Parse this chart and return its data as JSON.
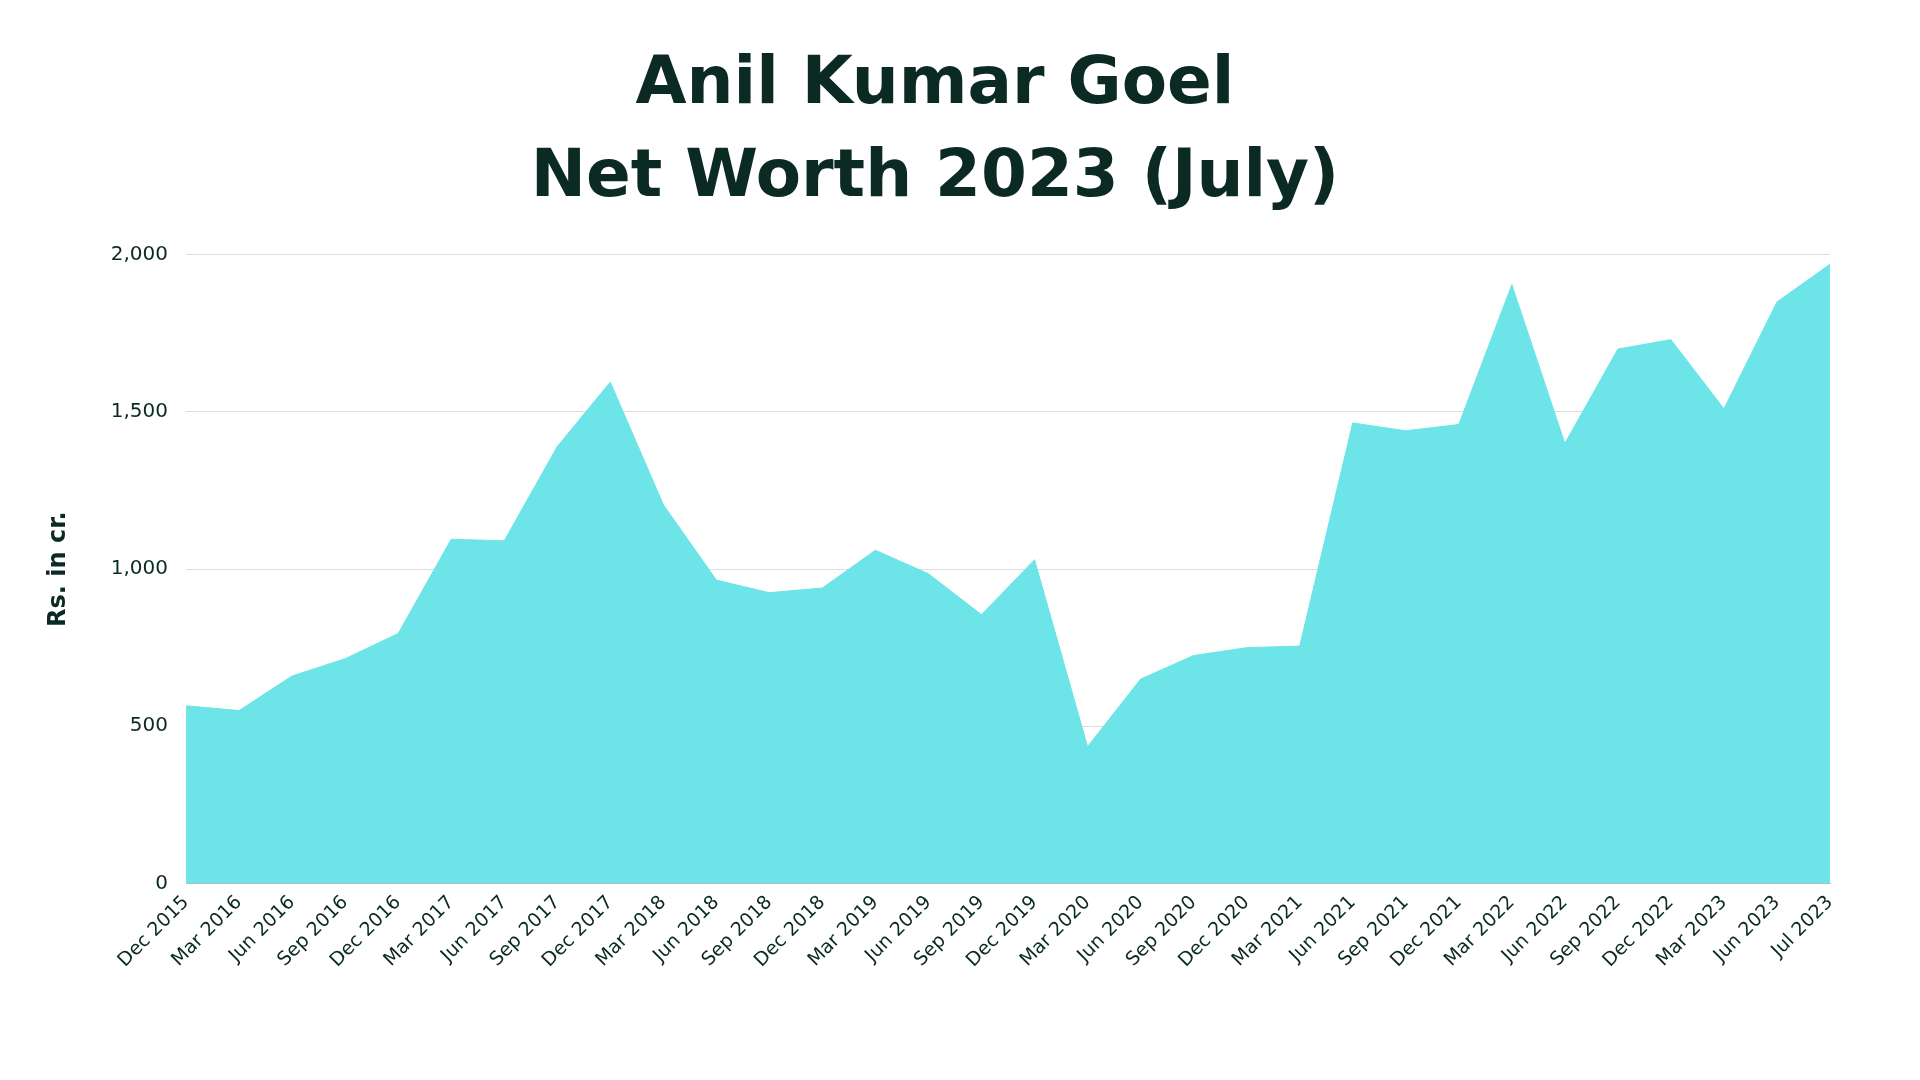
{
  "chart_data": {
    "type": "area",
    "title": "Anil Kumar Goel\nNet Worth 2023 (July)",
    "ylabel": "Rs. in cr.",
    "categories": [
      "Dec 2015",
      "Mar 2016",
      "Jun 2016",
      "Sep 2016",
      "Dec 2016",
      "Mar 2017",
      "Jun 2017",
      "Sep 2017",
      "Dec 2017",
      "Mar 2018",
      "Jun 2018",
      "Sep 2018",
      "Dec 2018",
      "Mar 2019",
      "Jun 2019",
      "Sep 2019",
      "Dec 2019",
      "Mar 2020",
      "Jun 2020",
      "Sep 2020",
      "Dec 2020",
      "Mar 2021",
      "Jun 2021",
      "Sep 2021",
      "Dec 2021",
      "Mar 2022",
      "Jun 2022",
      "Sep 2022",
      "Dec 2022",
      "Mar 2023",
      "Jun 2023",
      "Jul 2023"
    ],
    "series": [
      {
        "color": "#6ce4e8",
        "values": [
          565,
          550,
          660,
          715,
          795,
          1095,
          1090,
          1390,
          1595,
          1205,
          965,
          925,
          940,
          1060,
          985,
          855,
          1030,
          435,
          650,
          725,
          750,
          755,
          1465,
          1440,
          1460,
          1905,
          1400,
          1700,
          1730,
          1510,
          1850,
          1970
        ]
      }
    ],
    "ylim": [
      0,
      2000
    ],
    "yticks": [
      0,
      500,
      {
        "value": 1000,
        "label": "1,000"
      },
      {
        "value": 1500,
        "label": "1,500"
      },
      {
        "value": 2000,
        "label": "2,000"
      }
    ],
    "grid": "y",
    "legend": false,
    "marker": "none"
  }
}
